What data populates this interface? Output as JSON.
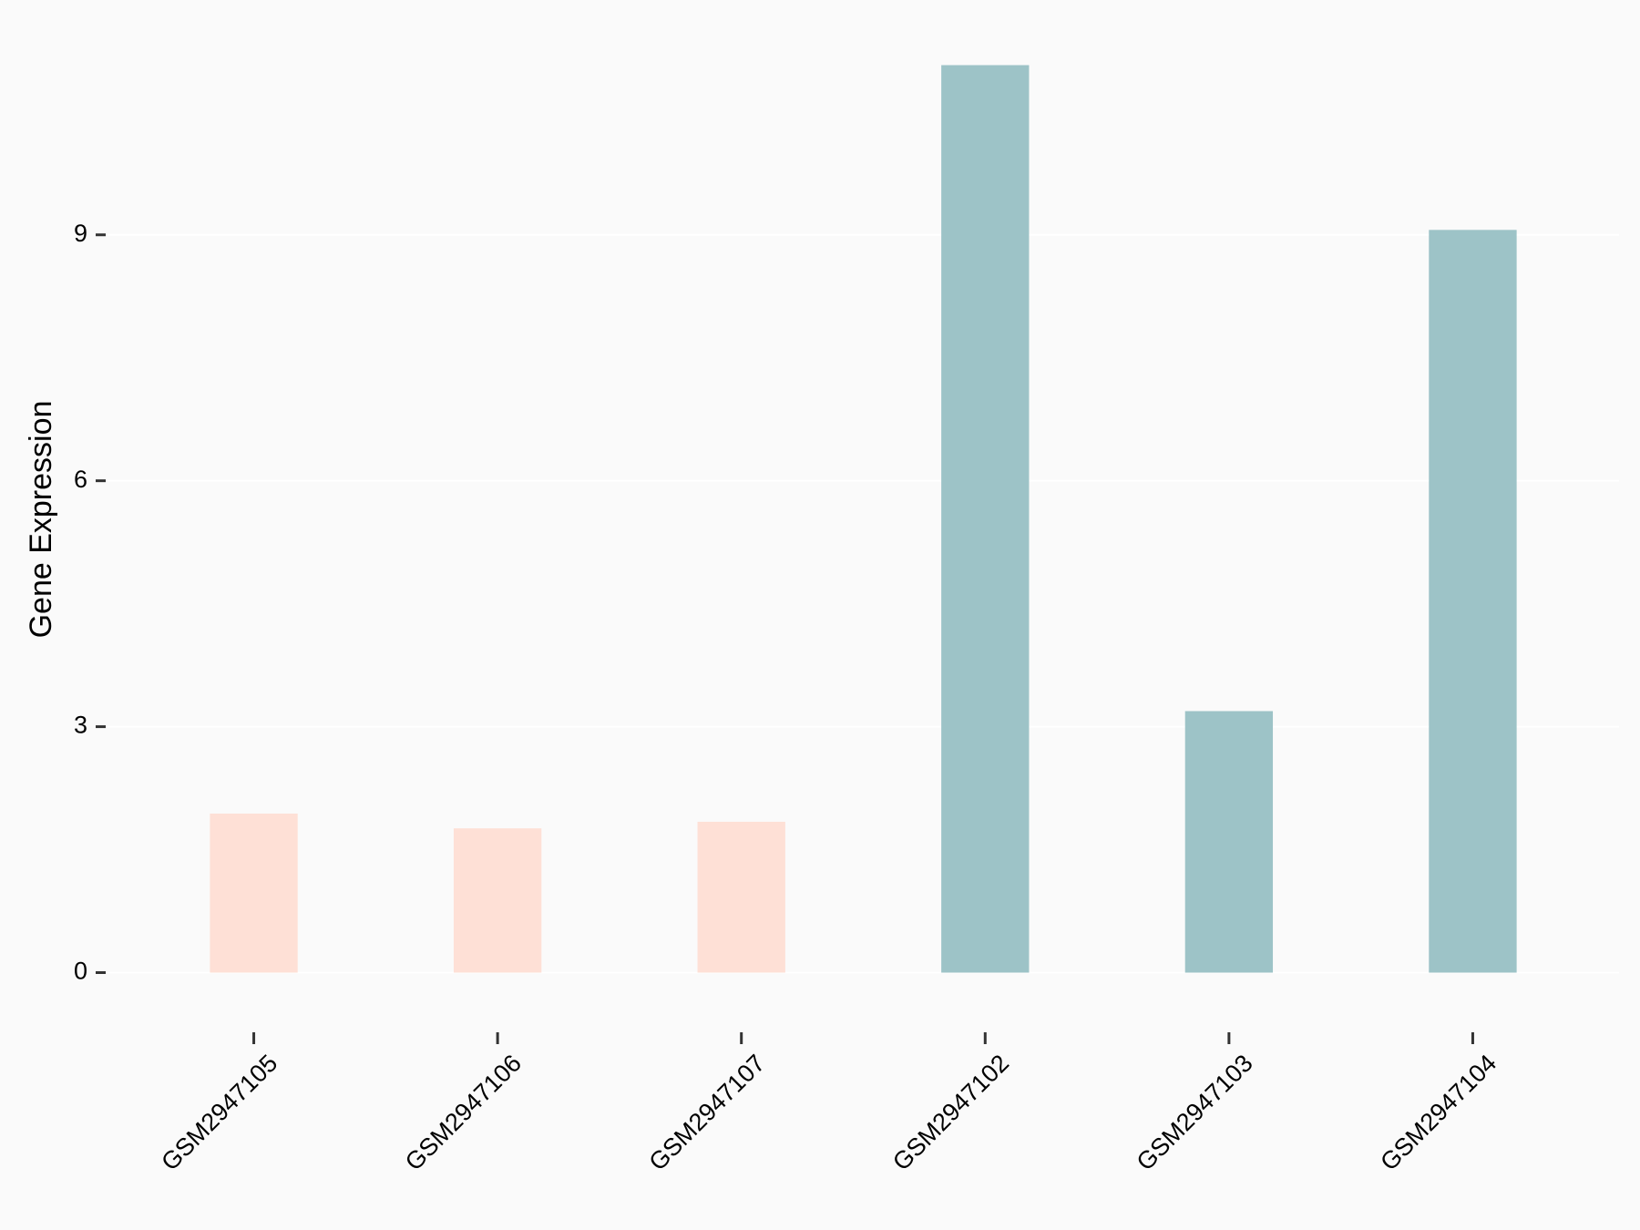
{
  "chart_data": {
    "type": "bar",
    "y_label": "Gene Expression",
    "categories": [
      "GSM2947105",
      "GSM2947106",
      "GSM2947107",
      "GSM2947102",
      "GSM2947103",
      "GSM2947104"
    ],
    "values": [
      1.94,
      1.76,
      1.84,
      11.07,
      3.19,
      9.06
    ],
    "colors": [
      "#fee0d6",
      "#fee0d6",
      "#fee0d6",
      "#9dc3c7",
      "#9dc3c7",
      "#9dc3c7"
    ],
    "ylim": [
      -0.55,
      11.62
    ],
    "yticks": [
      0,
      3,
      6,
      9
    ],
    "grid": true
  }
}
